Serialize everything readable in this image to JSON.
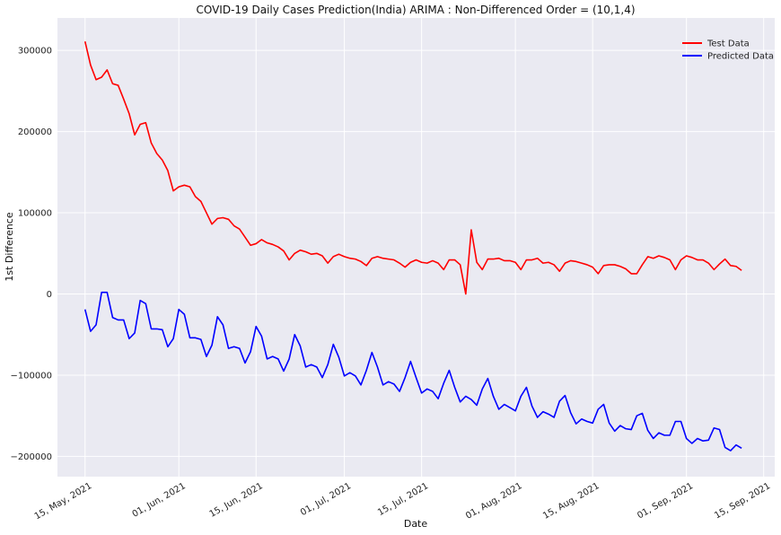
{
  "chart_data": {
    "type": "line",
    "title": "COVID-19 Daily Cases Prediction(India) ARIMA : Non-Differenced Order = (10,1,4)",
    "xlabel": "Date",
    "ylabel": "1st Difference",
    "x_start_date": "2021-05-15",
    "x_range": [
      "2021-05-10",
      "2021-09-17"
    ],
    "ylim": [
      -225000,
      340000
    ],
    "yticks": [
      -200000,
      -100000,
      0,
      100000,
      200000,
      300000
    ],
    "ytick_labels": [
      "−200000",
      "−100000",
      "0",
      "100000",
      "200000",
      "300000"
    ],
    "xticks": [
      "2021-05-15",
      "2021-06-01",
      "2021-06-15",
      "2021-07-01",
      "2021-07-15",
      "2021-08-01",
      "2021-08-15",
      "2021-09-01",
      "2021-09-15"
    ],
    "xtick_labels": [
      "15, May, 2021",
      "01, Jun, 2021",
      "15, Jun, 2021",
      "01, Jul, 2021",
      "15, Jul, 2021",
      "01, Aug, 2021",
      "15, Aug, 2021",
      "01, Sep, 2021",
      "15, Sep, 2021"
    ],
    "grid": true,
    "legend_position": "top-right",
    "series": [
      {
        "name": "Test Data",
        "color": "#ff0000",
        "values": [
          311000,
          282000,
          264000,
          267000,
          276000,
          259000,
          257000,
          240000,
          222000,
          196000,
          209000,
          211000,
          186000,
          173000,
          165000,
          152000,
          127000,
          132000,
          134000,
          132000,
          120000,
          114000,
          100000,
          86000,
          93000,
          94000,
          92000,
          84000,
          80000,
          70000,
          60000,
          62000,
          67000,
          63000,
          61000,
          58000,
          53000,
          42000,
          50000,
          54000,
          52000,
          49000,
          50000,
          47000,
          38000,
          46000,
          49000,
          46000,
          44000,
          43000,
          40000,
          35000,
          44000,
          46000,
          44000,
          43000,
          42000,
          38000,
          33000,
          39000,
          42000,
          39000,
          38000,
          41000,
          38000,
          30000,
          42000,
          42000,
          36000,
          0,
          79000,
          39000,
          30000,
          43000,
          43000,
          44000,
          41000,
          41000,
          39000,
          30000,
          42000,
          42000,
          44000,
          38000,
          39000,
          36000,
          28000,
          38000,
          41000,
          40000,
          38000,
          36000,
          33000,
          25000,
          35000,
          36000,
          36000,
          34000,
          31000,
          25000,
          25000,
          36000,
          46000,
          44000,
          47000,
          45000,
          42000,
          30000,
          42000,
          47000,
          45000,
          42000,
          42000,
          38000,
          30000,
          37000,
          43000,
          35000,
          34000,
          29000
        ]
      },
      {
        "name": "Predicted Data",
        "color": "#0000ff",
        "values": [
          -19000,
          -46000,
          -38000,
          2000,
          2000,
          -29000,
          -32000,
          -32000,
          -55000,
          -48000,
          -8000,
          -12000,
          -43000,
          -43000,
          -44000,
          -65000,
          -55000,
          -19000,
          -25000,
          -54000,
          -54000,
          -56000,
          -77000,
          -63000,
          -28000,
          -38000,
          -67000,
          -65000,
          -67000,
          -85000,
          -71000,
          -40000,
          -52000,
          -80000,
          -77000,
          -80000,
          -95000,
          -80000,
          -50000,
          -64000,
          -90000,
          -87000,
          -90000,
          -103000,
          -87000,
          -62000,
          -78000,
          -101000,
          -97000,
          -101000,
          -112000,
          -94000,
          -72000,
          -90000,
          -112000,
          -108000,
          -111000,
          -120000,
          -103000,
          -83000,
          -103000,
          -122000,
          -117000,
          -120000,
          -129000,
          -110000,
          -94000,
          -115000,
          -133000,
          -126000,
          -130000,
          -137000,
          -117000,
          -104000,
          -126000,
          -142000,
          -136000,
          -140000,
          -144000,
          -126000,
          -115000,
          -138000,
          -152000,
          -145000,
          -148000,
          -152000,
          -132000,
          -125000,
          -146000,
          -160000,
          -154000,
          -157000,
          -159000,
          -142000,
          -136000,
          -159000,
          -169000,
          -162000,
          -166000,
          -167000,
          -150000,
          -147000,
          -168000,
          -178000,
          -171000,
          -174000,
          -174000,
          -157000,
          -157000,
          -178000,
          -184000,
          -178000,
          -181000,
          -180000,
          -165000,
          -167000,
          -189000,
          -193000,
          -186000,
          -190000
        ]
      }
    ]
  }
}
